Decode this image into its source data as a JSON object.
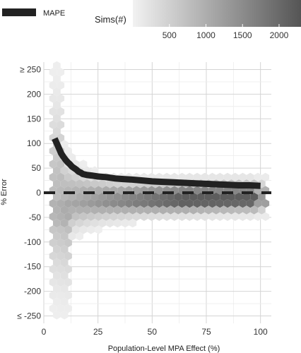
{
  "chart_data": {
    "type": "heatmap",
    "subtype": "hexbin-with-line",
    "xlabel": "Population-Level MPA Effect (%)",
    "ylabel": "% Error",
    "xlim": [
      0,
      105
    ],
    "ylim": [
      -265,
      265
    ],
    "x_ticks": [
      0,
      25,
      50,
      75,
      100
    ],
    "x_tick_labels": [
      "0",
      "25",
      "50",
      "75",
      "100"
    ],
    "y_ticks": [
      250,
      200,
      150,
      100,
      50,
      0,
      -50,
      -100,
      -150,
      -200,
      -250
    ],
    "y_tick_labels": [
      "≥ 250",
      "200",
      "150",
      "100",
      "50",
      "0",
      "-50",
      "-100",
      "-150",
      "-200",
      "≤ -250"
    ],
    "grid": true,
    "reference_line_y": 0,
    "legend": {
      "position": "top",
      "line_label": "MAPE",
      "fill_title": "Sims(#)",
      "fill_ticks": [
        500,
        1000,
        1500,
        2000
      ],
      "fill_range": [
        0,
        2300
      ],
      "color_low": "#f2f2f2",
      "color_high": "#555555"
    },
    "series": [
      {
        "name": "MAPE",
        "x": [
          5,
          6,
          7,
          8,
          9,
          10,
          11,
          12,
          13,
          14,
          15,
          16,
          17,
          18,
          20,
          22,
          25,
          28,
          30,
          33,
          36,
          40,
          45,
          50,
          55,
          60,
          65,
          70,
          75,
          80,
          85,
          90,
          95,
          100
        ],
        "y": [
          110,
          100,
          90,
          80,
          73,
          67,
          62,
          58,
          53,
          50,
          47,
          43,
          41,
          38,
          36,
          35,
          33,
          32,
          31,
          29,
          28,
          27,
          25,
          23,
          22,
          21,
          20,
          19,
          18,
          17,
          16,
          15,
          15,
          14
        ],
        "color": "#222222"
      }
    ]
  }
}
